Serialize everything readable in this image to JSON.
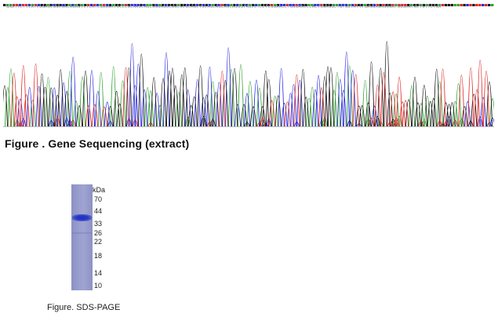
{
  "sequence": {
    "bases": "GAATTCTTCATCGGAGCGGCGACAGAGTCTCATCGAGGATGCCCGCAAGCAGCGGGAGGCGGCGCGCAGCTGCAGCAGCAGCAGGGTAGCCTCCTCGGAACCTGGGAACCCACTGGAGGCTGTGGTATTTGAGGAGAGGGATGGGAATGCTGTTCTGA"
  },
  "chromatogram": {
    "colors": {
      "A": "#2ca02c",
      "C": "#2222dd",
      "G": "#111111",
      "T": "#dd2222"
    }
  },
  "gene_figure": {
    "caption": "Figure . Gene Sequencing (extract)"
  },
  "gel": {
    "unit_label": "kDa",
    "markers": [
      "70",
      "44",
      "33",
      "26",
      "22",
      "18",
      "14",
      "10"
    ],
    "marker_values_kda": [
      70,
      44,
      33,
      26,
      22,
      18,
      14,
      10
    ],
    "band_kda": 38,
    "caption": "Figure. SDS-PAGE"
  }
}
